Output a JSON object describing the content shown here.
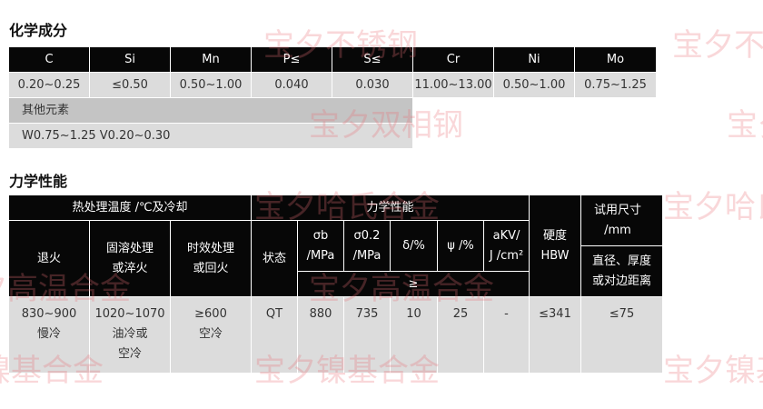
{
  "watermarks": [
    "宝夕不锈钢",
    "宝夕双相钢",
    "宝夕哈氏合金",
    "宝夕高温合金",
    "宝夕镍基合金"
  ],
  "chem": {
    "title": "化学成分",
    "headers": [
      "C",
      "Si",
      "Mn",
      "P≤",
      "S≤",
      "Cr",
      "Ni",
      "Mo"
    ],
    "values": [
      "0.20~0.25",
      "≤0.50",
      "0.50~1.00",
      "0.040",
      "0.030",
      "11.00~13.00",
      "0.50~1.00",
      "0.75~1.25"
    ],
    "other_label": "其他元素",
    "other_value": "W0.75~1.25 V0.20~0.30"
  },
  "mech": {
    "title": "力学性能",
    "heat_header": "热处理温度 /℃及冷却",
    "mech_header": "力学性能",
    "annealing": "退火",
    "solution": "固溶处理\n或淬火",
    "aging": "时效处理\n或回火",
    "state": "状态",
    "sigma_b": "σb\n/MPa",
    "sigma_02": "σ0.2\n/MPa",
    "delta": "δ/%",
    "psi": "ψ /%",
    "akv": "aKV/\nJ /cm²",
    "ge": "≥",
    "hardness": "硬度\nHBW",
    "size": "试用尺寸\n/mm",
    "size_sub": "直径、厚度\n或对边距离",
    "row": [
      "830~900\n慢冷",
      "1020~1070\n油冷或\n空冷",
      "≥600\n空冷",
      "QT",
      "880",
      "735",
      "10",
      "25",
      "-",
      "≤341",
      "≤75"
    ]
  }
}
